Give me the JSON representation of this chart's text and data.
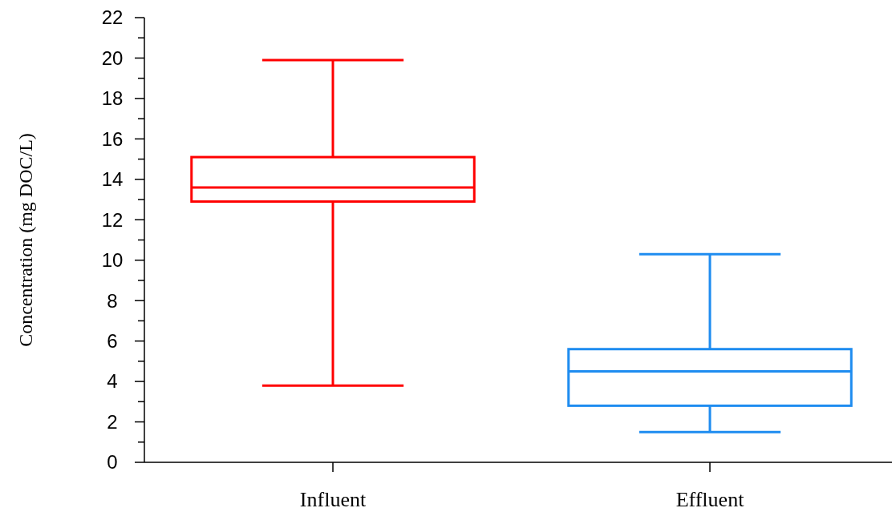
{
  "chart_data": {
    "type": "box",
    "ylabel": "Concentration  (mg DOC/L)",
    "categories": [
      "Influent",
      "Effluent"
    ],
    "boxes": [
      {
        "low": 3.8,
        "q1": 12.9,
        "median": 13.6,
        "q3": 15.1,
        "high": 19.9
      },
      {
        "low": 1.5,
        "q1": 2.8,
        "median": 4.5,
        "q3": 5.6,
        "high": 10.3
      }
    ],
    "colors": [
      "#ff0000",
      "#1e8cf0"
    ],
    "ylim": [
      0,
      22
    ],
    "yticks": [
      0,
      {
        "value": 1,
        "label": null
      },
      2,
      {
        "value": 3,
        "label": null
      },
      4,
      {
        "value": 5,
        "label": null
      },
      6,
      {
        "value": 7,
        "label": null
      },
      8,
      {
        "value": 9,
        "label": null
      },
      10,
      {
        "value": 11,
        "label": null
      },
      12,
      {
        "value": 13,
        "label": null
      },
      14,
      {
        "value": 15,
        "label": null
      },
      16,
      {
        "value": 17,
        "label": null
      },
      18,
      {
        "value": 19,
        "label": null
      },
      20,
      {
        "value": 21,
        "label": null
      },
      22
    ]
  }
}
